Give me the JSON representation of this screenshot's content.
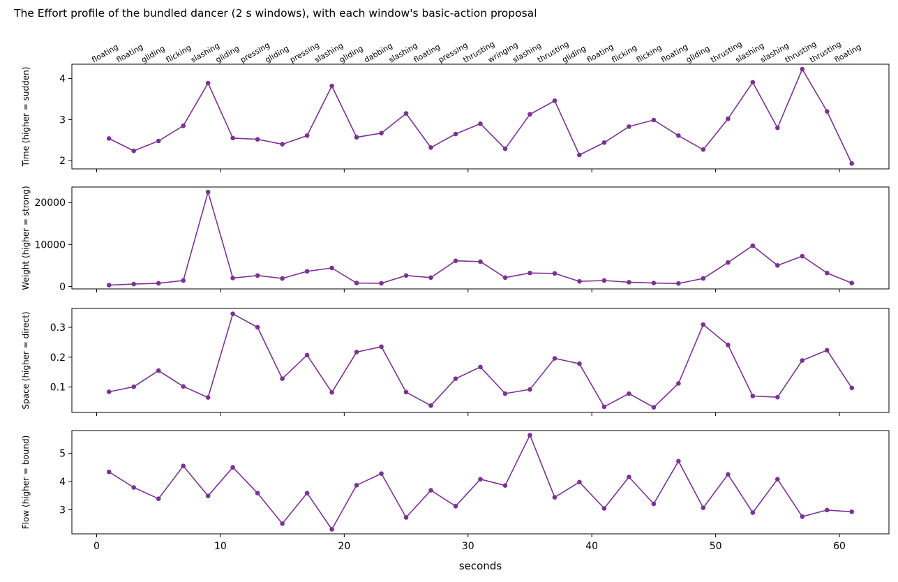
{
  "figure": {
    "title": "The Effort profile of the bundled dancer (2 s windows), with each window's basic-action proposal"
  },
  "chart_data": {
    "type": "line",
    "line_color": "#7b3294",
    "x": [
      1,
      3,
      5,
      7,
      9,
      11,
      13,
      15,
      17,
      19,
      21,
      23,
      25,
      27,
      29,
      31,
      33,
      35,
      37,
      39,
      41,
      43,
      45,
      47,
      49,
      51,
      53,
      55,
      57,
      59,
      61
    ],
    "xlabel": "seconds",
    "xlim": [
      -2,
      64
    ],
    "xticks": [
      0,
      10,
      20,
      30,
      40,
      50,
      60
    ],
    "actions": [
      "floating",
      "floating",
      "gliding",
      "flicking",
      "slashing",
      "gliding",
      "pressing",
      "gliding",
      "pressing",
      "slashing",
      "gliding",
      "dabbing",
      "slashing",
      "floating",
      "pressing",
      "thrusting",
      "wringing",
      "slashing",
      "thrusting",
      "gliding",
      "floating",
      "flicking",
      "flicking",
      "floating",
      "gliding",
      "thrusting",
      "slashing",
      "slashing",
      "thrusting",
      "thrusting",
      "floating"
    ],
    "panels": [
      {
        "ylabel": "Time (higher = sudden)",
        "ylim": [
          1.8,
          4.35
        ],
        "yticks": [
          2,
          3,
          4
        ],
        "values": [
          2.54,
          2.24,
          2.48,
          2.85,
          3.89,
          2.55,
          2.52,
          2.4,
          2.61,
          3.82,
          2.57,
          2.67,
          3.15,
          2.32,
          2.65,
          2.9,
          2.29,
          3.13,
          3.46,
          2.14,
          2.44,
          2.83,
          2.99,
          2.61,
          2.27,
          3.02,
          3.91,
          2.8,
          4.23,
          3.2,
          1.93
        ]
      },
      {
        "ylabel": "Weight (higher = strong)",
        "ylim": [
          -600,
          23700
        ],
        "yticks": [
          0,
          10000,
          20000
        ],
        "values": [
          300,
          550,
          750,
          1400,
          22500,
          2000,
          2600,
          1900,
          3600,
          4400,
          800,
          750,
          2600,
          2100,
          6100,
          5900,
          2100,
          3200,
          3100,
          1200,
          1400,
          1000,
          800,
          700,
          1900,
          5700,
          9700,
          5000,
          7200,
          3200,
          800
        ]
      },
      {
        "ylabel": "Space (higher = direct)",
        "ylim": [
          0.015,
          0.363
        ],
        "yticks": [
          0.1,
          0.2,
          0.3
        ],
        "values": [
          0.084,
          0.101,
          0.155,
          0.102,
          0.065,
          0.345,
          0.3,
          0.128,
          0.207,
          0.082,
          0.217,
          0.235,
          0.083,
          0.038,
          0.128,
          0.167,
          0.078,
          0.092,
          0.196,
          0.178,
          0.034,
          0.078,
          0.032,
          0.112,
          0.309,
          0.241,
          0.07,
          0.066,
          0.189,
          0.223,
          0.097
        ]
      },
      {
        "ylabel": "Flow (higher = bound)",
        "ylim": [
          2.15,
          5.8
        ],
        "yticks": [
          3,
          4,
          5
        ],
        "values": [
          4.34,
          3.79,
          3.39,
          4.55,
          3.49,
          4.5,
          3.59,
          2.51,
          3.59,
          2.31,
          3.87,
          4.28,
          2.73,
          3.69,
          3.13,
          4.08,
          3.86,
          5.64,
          3.44,
          3.98,
          3.05,
          4.16,
          3.21,
          4.72,
          3.07,
          4.25,
          2.9,
          4.08,
          2.76,
          2.99,
          2.93
        ]
      }
    ]
  }
}
